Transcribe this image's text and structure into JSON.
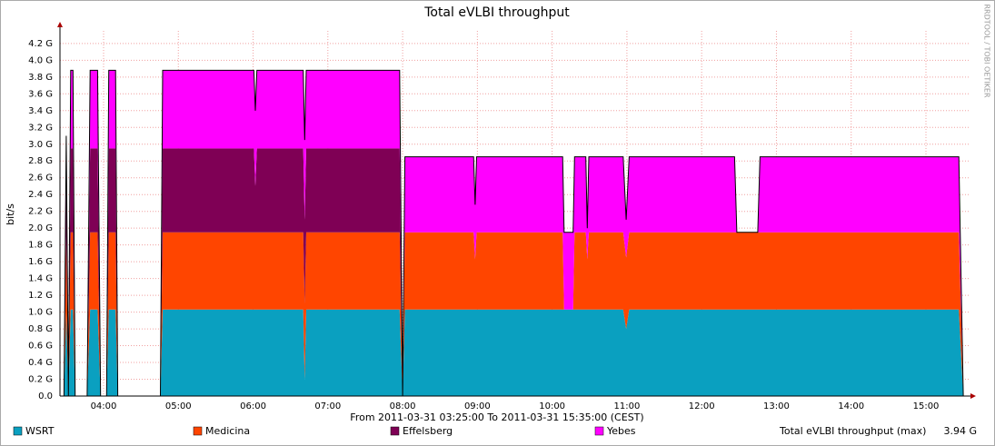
{
  "chart_data": {
    "type": "stacked-area",
    "title": "Total eVLBI throughput",
    "y_label": "bit/s",
    "x_label": "From 2011-03-31 03:25:00 To 2011-03-31 15:35:00 (CEST)",
    "watermark": "RRDTOOL / TOBI OETIKER",
    "max_label": "Total eVLBI throughput (max)",
    "max": {
      "value": 3.94,
      "label": "3.94 G"
    },
    "grid": true,
    "xlim": [
      3.4167,
      15.5833
    ],
    "ylim": [
      0,
      4.35
    ],
    "xticks": [
      {
        "value": 4,
        "label": "04:00"
      },
      {
        "value": 5,
        "label": "05:00"
      },
      {
        "value": 6,
        "label": "06:00"
      },
      {
        "value": 7,
        "label": "07:00"
      },
      {
        "value": 8,
        "label": "08:00"
      },
      {
        "value": 9,
        "label": "09:00"
      },
      {
        "value": 10,
        "label": "10:00"
      },
      {
        "value": 11,
        "label": "11:00"
      },
      {
        "value": 12,
        "label": "12:00"
      },
      {
        "value": 13,
        "label": "13:00"
      },
      {
        "value": 14,
        "label": "14:00"
      },
      {
        "value": 15,
        "label": "15:00"
      }
    ],
    "yticks": [
      {
        "value": 0,
        "label": "0.0"
      },
      {
        "value": 0.2,
        "label": "0.2 G"
      },
      {
        "value": 0.4,
        "label": "0.4 G"
      },
      {
        "value": 0.6,
        "label": "0.6 G"
      },
      {
        "value": 0.8,
        "label": "0.8 G"
      },
      {
        "value": 1.0,
        "label": "1.0 G"
      },
      {
        "value": 1.2,
        "label": "1.2 G"
      },
      {
        "value": 1.4,
        "label": "1.4 G"
      },
      {
        "value": 1.6,
        "label": "1.6 G"
      },
      {
        "value": 1.8,
        "label": "1.8 G"
      },
      {
        "value": 2.0,
        "label": "2.0 G"
      },
      {
        "value": 2.2,
        "label": "2.2 G"
      },
      {
        "value": 2.4,
        "label": "2.4 G"
      },
      {
        "value": 2.6,
        "label": "2.6 G"
      },
      {
        "value": 2.8,
        "label": "2.8 G"
      },
      {
        "value": 3.0,
        "label": "3.0 G"
      },
      {
        "value": 3.2,
        "label": "3.2 G"
      },
      {
        "value": 3.4,
        "label": "3.4 G"
      },
      {
        "value": 3.6,
        "label": "3.6 G"
      },
      {
        "value": 3.8,
        "label": "3.8 G"
      },
      {
        "value": 4.0,
        "label": "4.0 G"
      },
      {
        "value": 4.2,
        "label": "4.2 G"
      }
    ],
    "x": [
      3.42,
      3.47,
      3.5,
      3.53,
      3.56,
      3.59,
      3.62,
      3.78,
      3.82,
      3.92,
      3.96,
      4.04,
      4.07,
      4.16,
      4.19,
      4.76,
      4.79,
      6.01,
      6.03,
      6.05,
      6.67,
      6.69,
      6.71,
      7.96,
      8.0,
      8.03,
      8.95,
      8.97,
      8.99,
      10.14,
      10.16,
      10.28,
      10.3,
      10.45,
      10.47,
      10.49,
      10.95,
      10.99,
      11.03,
      12.44,
      12.47,
      12.75,
      12.78,
      15.44,
      15.5
    ],
    "series": [
      {
        "name": "WSRT",
        "color": "#0aa0c0",
        "values": [
          0,
          0,
          1.0,
          0,
          1.03,
          1.03,
          0,
          0,
          1.03,
          1.03,
          0,
          0,
          1.03,
          1.03,
          0,
          0,
          1.03,
          1.03,
          1.03,
          1.03,
          1.03,
          0.2,
          1.03,
          1.03,
          0,
          1.03,
          1.03,
          1.03,
          1.03,
          1.03,
          1.03,
          1.03,
          1.03,
          1.03,
          1.03,
          1.03,
          1.03,
          0.8,
          1.03,
          1.03,
          1.03,
          1.03,
          1.03,
          1.03,
          0
        ]
      },
      {
        "name": "Medicina",
        "color": "#ff4500",
        "values": [
          0,
          0,
          0.9,
          0,
          0.92,
          0.92,
          0,
          0,
          0.92,
          0.92,
          0,
          0,
          0.92,
          0.92,
          0,
          0,
          0.92,
          0.92,
          0.92,
          0.92,
          0.92,
          0.9,
          0.92,
          0.92,
          0,
          0.92,
          0.92,
          0.6,
          0.92,
          0.92,
          0,
          0,
          0.92,
          0.92,
          0.6,
          0.92,
          0.92,
          0.85,
          0.92,
          0.92,
          0.92,
          0.92,
          0.92,
          0.92,
          0
        ]
      },
      {
        "name": "Effelsberg",
        "color": "#7f0055",
        "values": [
          0,
          0,
          0.7,
          0,
          1.0,
          1.0,
          0,
          0,
          1.0,
          1.0,
          0,
          0,
          1.0,
          1.0,
          0,
          0,
          1.0,
          1.0,
          0.55,
          1.0,
          1.0,
          1.0,
          1.0,
          1.0,
          0,
          0,
          0,
          0,
          0,
          0,
          0,
          0,
          0,
          0,
          0,
          0,
          0,
          0,
          0,
          0,
          0,
          0,
          0,
          0,
          0
        ]
      },
      {
        "name": "Yebes",
        "color": "#ff00ff",
        "values": [
          0,
          0,
          0.5,
          0,
          0.93,
          0.93,
          0,
          0,
          0.93,
          0.93,
          0,
          0,
          0.93,
          0.93,
          0,
          0,
          0.93,
          0.93,
          0.9,
          0.93,
          0.93,
          0.95,
          0.93,
          0.93,
          0,
          0.9,
          0.9,
          0.65,
          0.9,
          0.9,
          0.92,
          0.92,
          0.9,
          0.9,
          0.37,
          0.9,
          0.9,
          0.45,
          0.9,
          0.9,
          0,
          0,
          0.9,
          0.9,
          0
        ]
      }
    ]
  }
}
